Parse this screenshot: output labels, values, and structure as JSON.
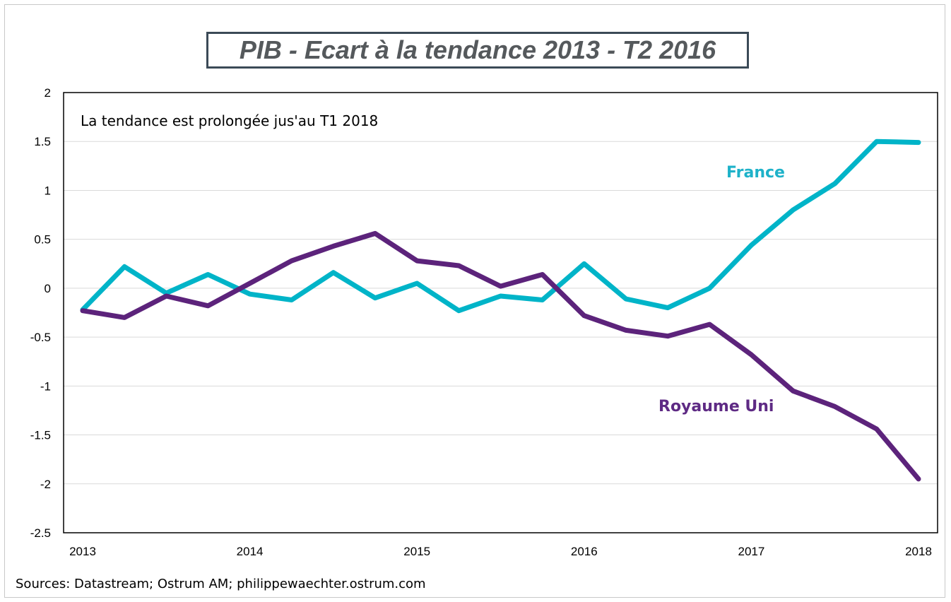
{
  "chart_data": {
    "type": "line",
    "title": "PIB - Ecart à la tendance 2013 - T2 2016",
    "annotation": "La tendance est prolongée jus'au T1 2018",
    "source": "Sources: Datastream;  Ostrum AM; philippewaechter.ostrum.com",
    "xlim": [
      2013,
      2018
    ],
    "ylim": [
      -2.5,
      2
    ],
    "x_ticks": [
      2013,
      2014,
      2015,
      2016,
      2017,
      2018
    ],
    "x_tick_labels": [
      "2013",
      "2014",
      "2015",
      "2016",
      "2017",
      "2018"
    ],
    "y_ticks": [
      2,
      1.5,
      1,
      0.5,
      0,
      -0.5,
      -1,
      -1.5,
      -2,
      -2.5
    ],
    "y_tick_labels": [
      "2",
      "1.5",
      "1",
      "0.5",
      "0",
      "-0.5",
      "-1",
      "-1.5",
      "-2",
      "-2.5"
    ],
    "grid": true,
    "x": [
      2013,
      2013.25,
      2013.5,
      2013.75,
      2014,
      2014.25,
      2014.5,
      2014.75,
      2015,
      2015.25,
      2015.5,
      2015.75,
      2016,
      2016.25,
      2016.5,
      2016.75,
      2017,
      2017.25,
      2017.5,
      2017.75,
      2018
    ],
    "series": [
      {
        "name": "France",
        "color": "#00b4c8",
        "label_color": "#1eb2c9",
        "values": [
          -0.22,
          0.22,
          -0.05,
          0.14,
          -0.06,
          -0.12,
          0.16,
          -0.1,
          0.05,
          -0.23,
          -0.08,
          -0.12,
          0.25,
          -0.11,
          -0.2,
          0.0,
          0.44,
          0.8,
          1.07,
          1.5,
          1.49
        ]
      },
      {
        "name": "Royaume Uni",
        "color": "#5c237b",
        "label_color": "#5e2a84",
        "values": [
          -0.23,
          -0.3,
          -0.08,
          -0.18,
          0.05,
          0.28,
          0.43,
          0.56,
          0.28,
          0.23,
          0.02,
          0.14,
          -0.28,
          -0.43,
          -0.49,
          -0.37,
          -0.68,
          -1.05,
          -1.21,
          -1.44,
          -1.95
        ]
      }
    ]
  }
}
